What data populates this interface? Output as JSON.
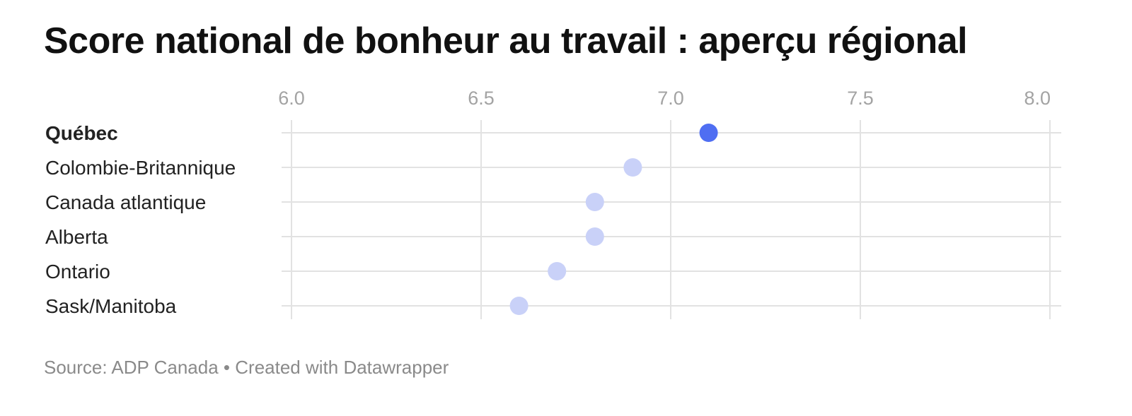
{
  "title": "Score national de bonheur au travail : aperçu régional",
  "footer": {
    "source": "Source: ADP Canada",
    "separator": "•",
    "credit": "Created with Datawrapper"
  },
  "colors": {
    "highlight": "#4f6ef2",
    "dot": "#c9d1f8",
    "grid": "#e2e2e2",
    "tick_text": "#a3a3a3"
  },
  "chart_data": {
    "type": "scatter",
    "x_ticks": [
      "6.0",
      "6.5",
      "7.0",
      "7.5",
      "8.0"
    ],
    "xlim": [
      6.0,
      8.0
    ],
    "grid": true,
    "categories": [
      "Québec",
      "Colombie-Britannique",
      "Canada atlantique",
      "Alberta",
      "Ontario",
      "Sask/Manitoba"
    ],
    "values": [
      7.1,
      6.9,
      6.8,
      6.8,
      6.7,
      6.6
    ],
    "highlighted": "Québec"
  }
}
